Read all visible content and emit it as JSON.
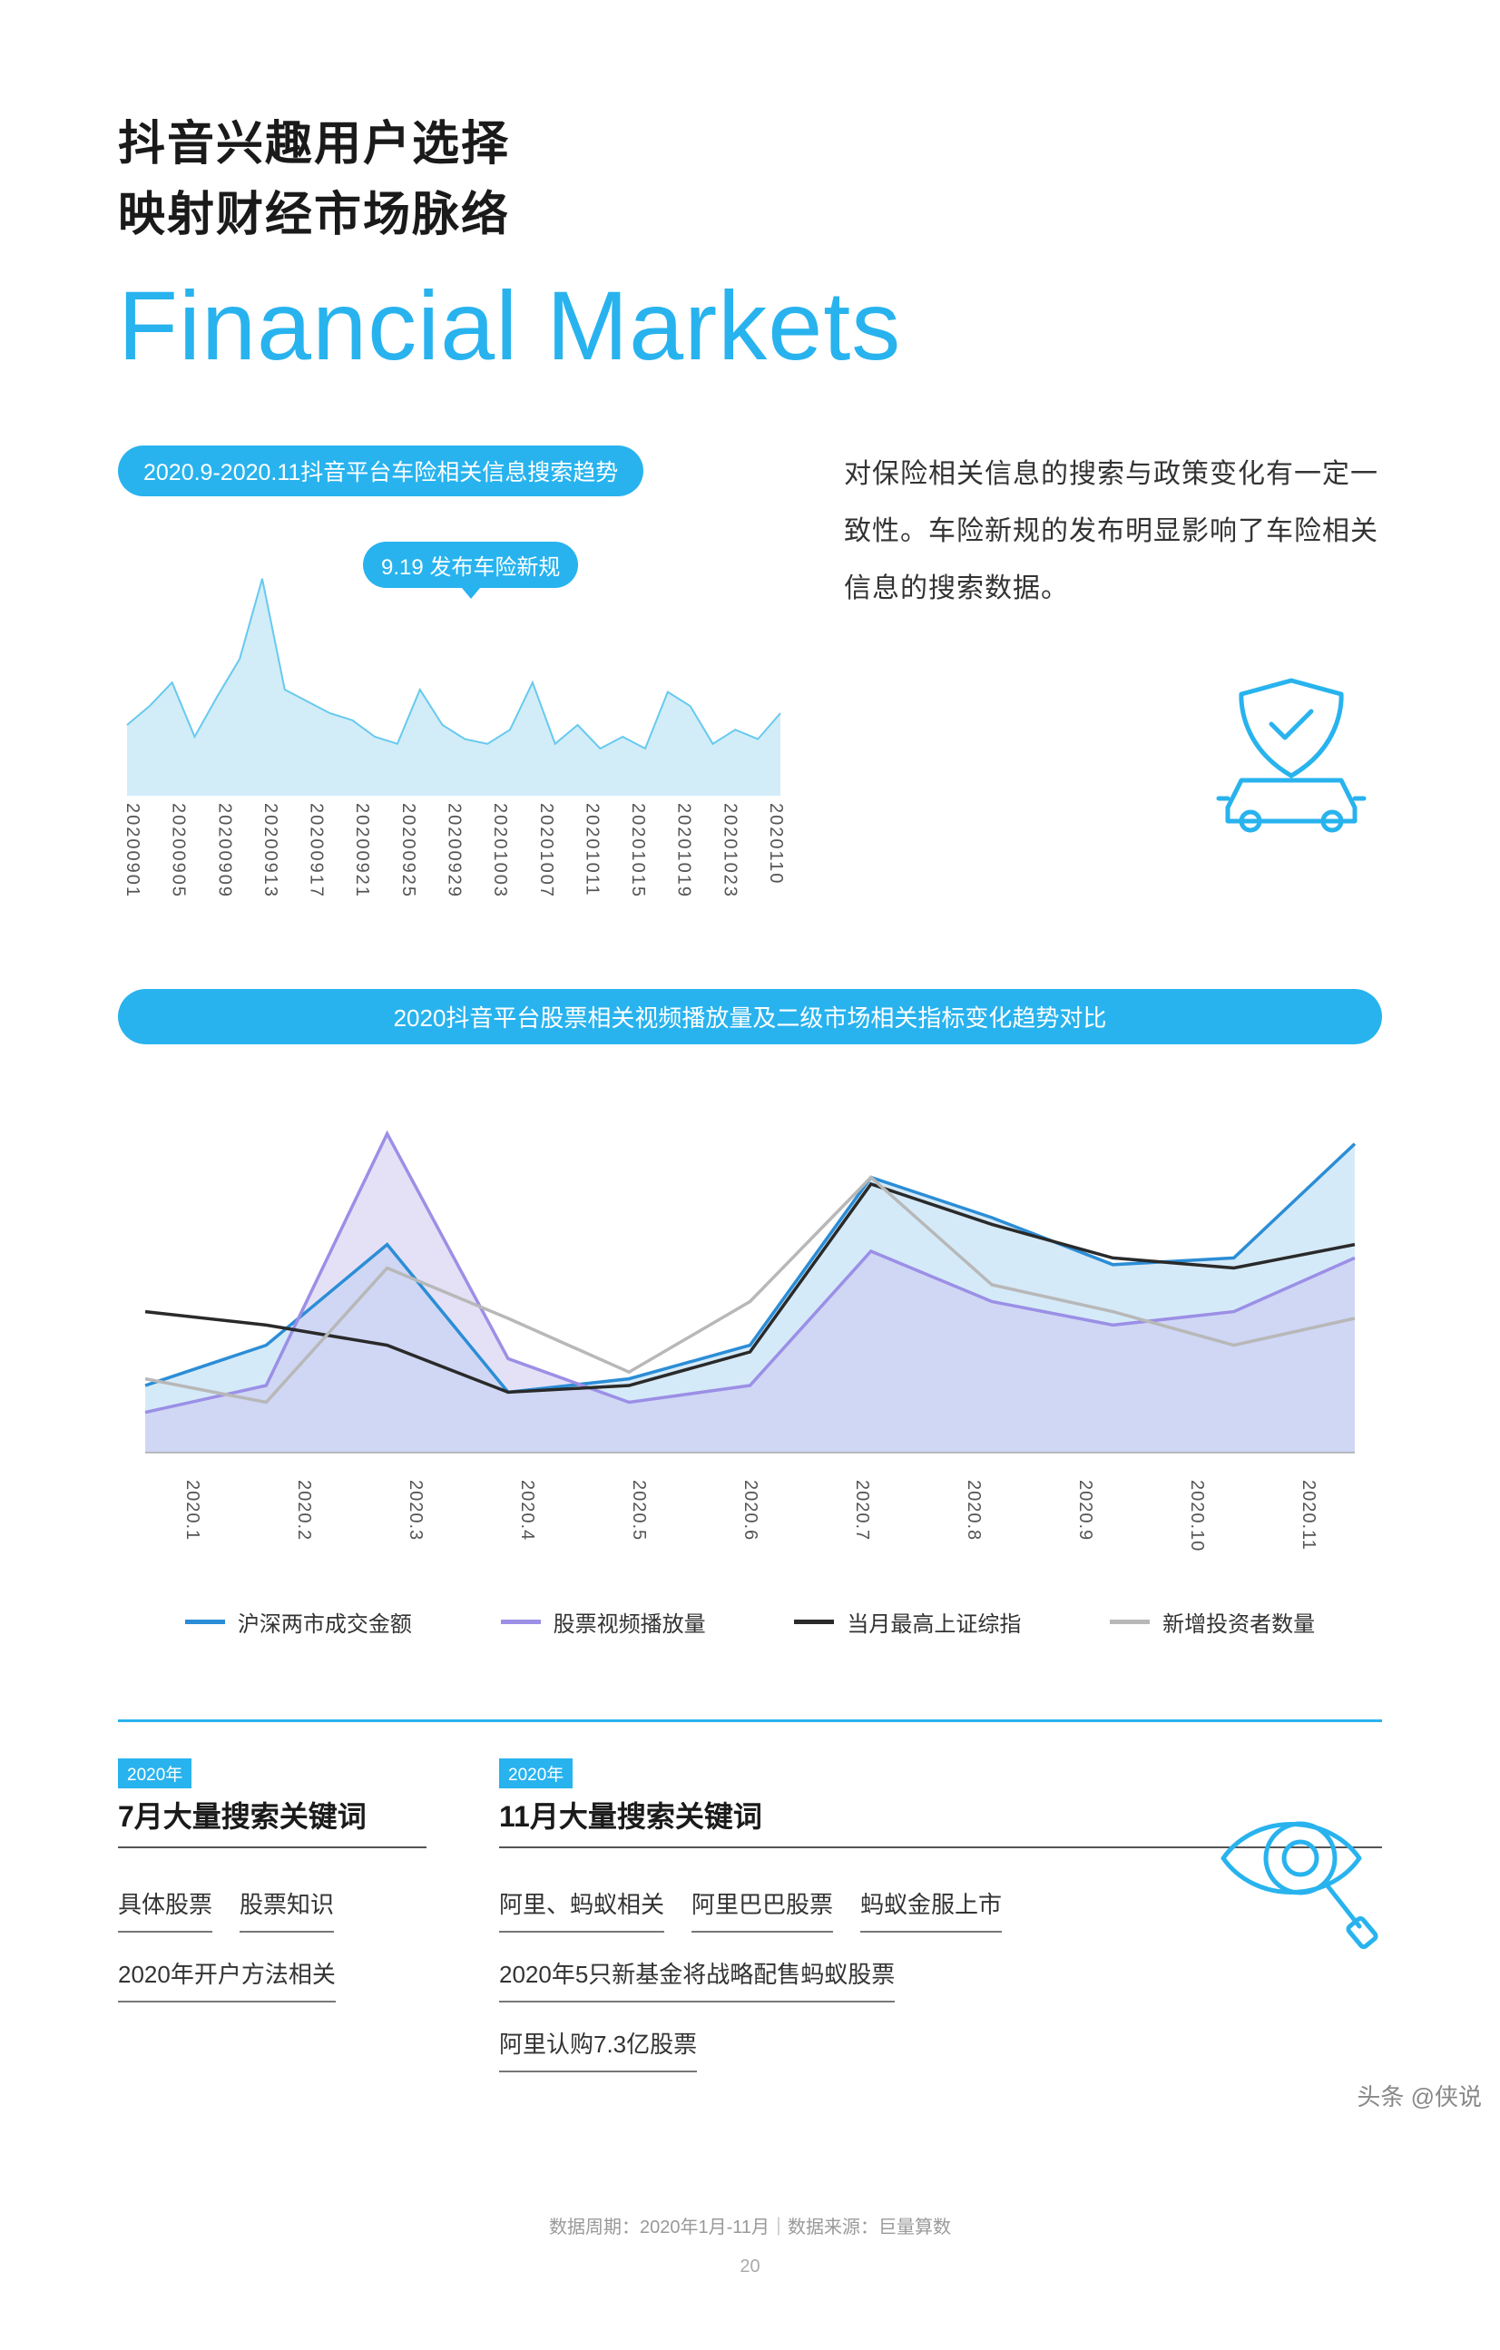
{
  "heading": {
    "cn_line1": "抖音兴趣用户选择",
    "cn_line2": "映射财经市场脉络",
    "en": "Financial Markets"
  },
  "chart1": {
    "pill": "2020.9-2020.11抖音平台车险相关信息搜索趋势",
    "callout": "9.19 发布车险新规",
    "dates": [
      "20200901",
      "20200905",
      "20200909",
      "20200913",
      "20200917",
      "20200921",
      "20200925",
      "20200929",
      "20201003",
      "20201007",
      "20201011",
      "20201015",
      "20201019",
      "20201023",
      "2020110"
    ],
    "values": [
      30,
      38,
      48,
      25,
      42,
      58,
      92,
      45,
      40,
      35,
      32,
      25,
      22,
      45,
      30,
      24,
      22,
      28,
      48,
      22,
      30,
      20,
      25,
      20,
      44,
      38,
      22,
      28,
      24,
      35
    ],
    "fill": "#bfe6f5",
    "stroke": "#67c9ef"
  },
  "desc": "对保险相关信息的搜索与政策变化有一定一致性。车险新规的发布明显影响了车险相关信息的搜索数据。",
  "chart2": {
    "pill": "2020抖音平台股票相关视频播放量及二级市场相关指标变化趋势对比",
    "months": [
      "2020.1",
      "2020.2",
      "2020.3",
      "2020.4",
      "2020.5",
      "2020.6",
      "2020.7",
      "2020.8",
      "2020.9",
      "2020.10",
      "2020.11"
    ],
    "series": {
      "turnover": {
        "label": "沪深两市成交金额",
        "color": "#2b8dd6",
        "values": [
          20,
          32,
          62,
          18,
          22,
          32,
          82,
          70,
          56,
          58,
          92
        ]
      },
      "video": {
        "label": "股票视频播放量",
        "color": "#9b8fe6",
        "values": [
          12,
          20,
          95,
          28,
          15,
          20,
          60,
          45,
          38,
          42,
          58
        ]
      },
      "index": {
        "label": "当月最高上证综指",
        "color": "#2a2a2a",
        "values": [
          42,
          38,
          32,
          18,
          20,
          30,
          80,
          68,
          58,
          55,
          62
        ]
      },
      "investors": {
        "label": "新增投资者数量",
        "color": "#b8b8b8",
        "values": [
          22,
          15,
          55,
          40,
          24,
          45,
          82,
          50,
          42,
          32,
          40
        ]
      }
    },
    "area_fill": "#b3d9f2",
    "area_fill2": "#c9c3ef"
  },
  "keywords": {
    "badge": "2020年",
    "col1": {
      "title": "7月大量搜索关键词",
      "rows": [
        [
          "具体股票",
          "股票知识"
        ],
        [
          "2020年开户方法相关"
        ]
      ]
    },
    "col2": {
      "title": "11月大量搜索关键词",
      "rows": [
        [
          "阿里、蚂蚁相关",
          "阿里巴巴股票",
          "蚂蚁金服上市"
        ],
        [
          "2020年5只新基金将战略配售蚂蚁股票"
        ],
        [
          "阿里认购7.3亿股票"
        ]
      ]
    }
  },
  "footer": {
    "source": "数据周期：2020年1月-11月｜数据来源：巨量算数",
    "page": "20"
  },
  "watermark": "头条 @侠说",
  "colors": {
    "brand": "#28b3ee"
  }
}
